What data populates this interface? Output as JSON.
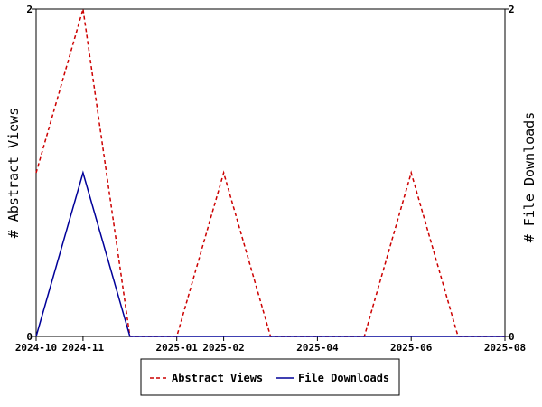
{
  "chart_data": {
    "type": "line",
    "x": [
      "2024-10",
      "2024-11",
      "2024-12",
      "2025-01",
      "2025-02",
      "2025-03",
      "2025-04",
      "2025-05",
      "2025-06",
      "2025-07",
      "2025-08"
    ],
    "x_ticks": [
      "2024-10",
      "2024-11",
      "2025-01",
      "2025-02",
      "2025-04",
      "2025-06",
      "2025-08"
    ],
    "series": [
      {
        "name": "Abstract Views",
        "axis": "left",
        "color": "#cc0000",
        "dash": "dashed",
        "values": [
          1,
          2,
          0,
          0,
          1,
          0,
          0,
          0,
          1,
          0,
          0
        ]
      },
      {
        "name": "File Downloads",
        "axis": "right",
        "color": "#000099",
        "dash": "solid",
        "values": [
          0,
          1,
          0,
          0,
          0,
          0,
          0,
          0,
          0,
          0,
          0
        ]
      }
    ],
    "ylabel_left": "# Abstract Views",
    "ylabel_right": "# File Downloads",
    "ylim_left": [
      0,
      2
    ],
    "ylim_right": [
      0,
      2
    ],
    "y_ticks_left": [
      "0",
      "2"
    ],
    "y_ticks_right": [
      "0",
      "2"
    ],
    "legend_position": "bottom",
    "grid": false
  }
}
